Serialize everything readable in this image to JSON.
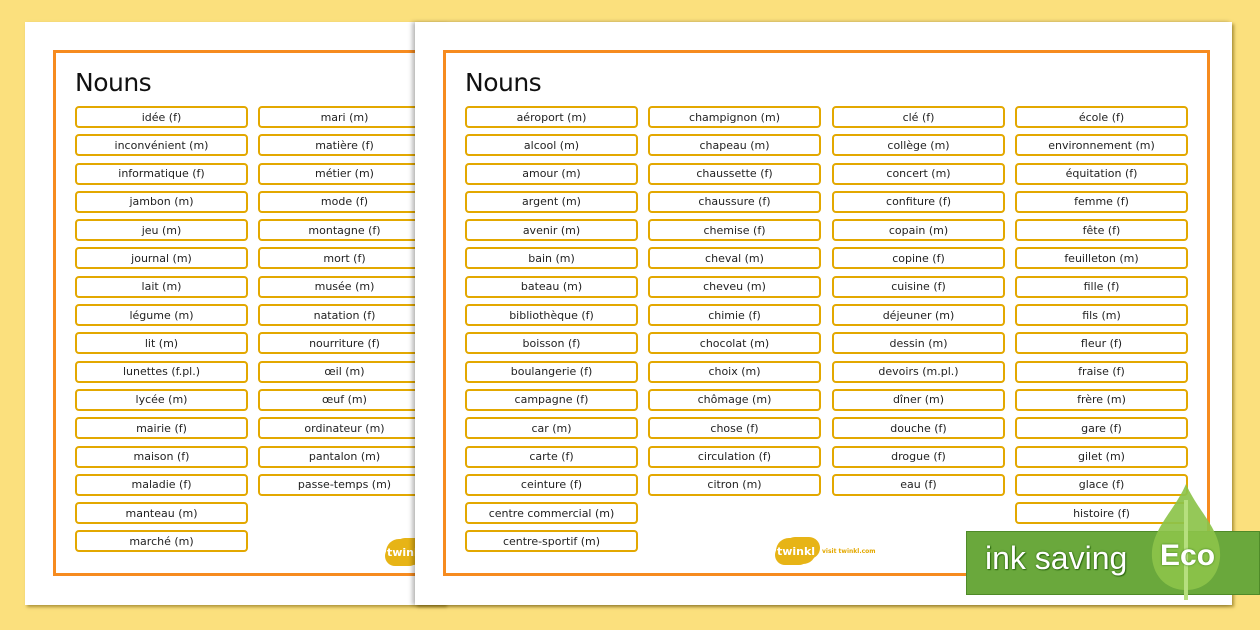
{
  "background_color": "#fbe07d",
  "accent_color": "#f68b1f",
  "card_border_color": "#e3a800",
  "back_page": {
    "title": "Nouns",
    "columns": [
      [
        "idée (f)",
        "inconvénient (m)",
        "informatique (f)",
        "jambon (m)",
        "jeu (m)",
        "journal (m)",
        "lait (m)",
        "légume (m)",
        "lit (m)",
        "lunettes (f.pl.)",
        "lycée (m)",
        "mairie (f)",
        "maison (f)",
        "maladie (f)",
        "manteau (m)",
        "marché (m)"
      ],
      [
        "mari (m)",
        "matière (f)",
        "métier (m)",
        "mode (f)",
        "montagne (f)",
        "mort (f)",
        "musée (m)",
        "natation (f)",
        "nourriture (f)",
        "œil (m)",
        "œuf (m)",
        "ordinateur (m)",
        "pantalon (m)",
        "passe-temps (m)"
      ]
    ],
    "logo": "twinkl"
  },
  "front_page": {
    "title": "Nouns",
    "columns": [
      [
        "aéroport (m)",
        "alcool (m)",
        "amour (m)",
        "argent (m)",
        "avenir (m)",
        "bain (m)",
        "bateau (m)",
        "bibliothèque (f)",
        "boisson (f)",
        "boulangerie (f)",
        "campagne (f)",
        "car (m)",
        "carte (f)",
        "ceinture (f)",
        "centre commercial (m)",
        "centre-sportif (m)"
      ],
      [
        "champignon (m)",
        "chapeau (m)",
        "chaussette (f)",
        "chaussure (f)",
        "chemise (f)",
        "cheval (m)",
        "cheveu (m)",
        "chimie (f)",
        "chocolat (m)",
        "choix (m)",
        "chômage (m)",
        "chose (f)",
        "circulation (f)",
        "citron (m)"
      ],
      [
        "clé (f)",
        "collège (m)",
        "concert (m)",
        "confiture (f)",
        "copain (m)",
        "copine (f)",
        "cuisine (f)",
        "déjeuner (m)",
        "dessin (m)",
        "devoirs (m.pl.)",
        "dîner (m)",
        "douche (f)",
        "drogue (f)",
        "eau (f)"
      ],
      [
        "école (f)",
        "environnement (m)",
        "équitation (f)",
        "femme (f)",
        "fête (f)",
        "feuilleton (m)",
        "fille (f)",
        "fils (m)",
        "fleur (f)",
        "fraise (f)",
        "frère (m)",
        "gare (f)",
        "gilet (m)",
        "glace (f)",
        "histoire (f)"
      ]
    ],
    "logo": "twinkl",
    "logo_tagline": "visit twinkl.com"
  },
  "eco_badge": {
    "label": "ink saving",
    "badge": "Eco",
    "color": "#6aa83c"
  }
}
